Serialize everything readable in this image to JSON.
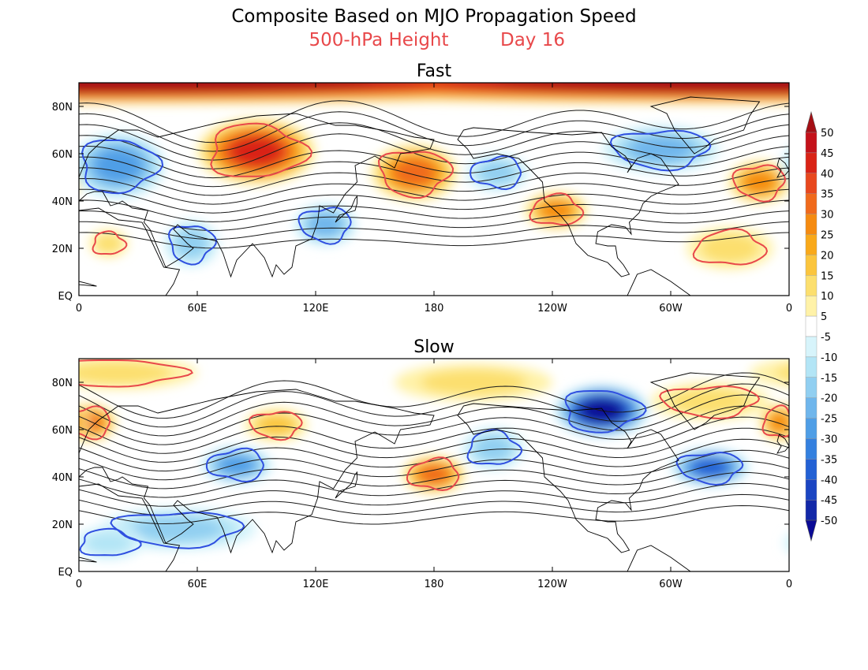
{
  "figure": {
    "title": "Composite Based on MJO Propagation Speed",
    "subtitle_field": "500-hPa Height",
    "subtitle_day": "Day 16",
    "subtitle_color": "#e8484a"
  },
  "axes": {
    "lat_labels": [
      "80N",
      "60N",
      "40N",
      "20N",
      "EQ"
    ],
    "lon_labels": [
      "0",
      "60E",
      "120E",
      "180",
      "120W",
      "60W",
      "0"
    ]
  },
  "panels": [
    {
      "title": "Fast",
      "positive_contour_color": "#e8484a",
      "negative_contour_color": "#2f4fe0",
      "anomaly_centers": [
        {
          "lon": 0,
          "lat": 90,
          "value": 50,
          "rlon": 360,
          "rlat": 9
        },
        {
          "lon": 90,
          "lat": 61,
          "value": 40,
          "rlon": 30,
          "rlat": 14
        },
        {
          "lon": 170,
          "lat": 52,
          "value": 30,
          "rlon": 22,
          "rlat": 12
        },
        {
          "lon": 242,
          "lat": 36,
          "value": 25,
          "rlon": 16,
          "rlat": 8
        },
        {
          "lon": 345,
          "lat": 48,
          "value": 25,
          "rlon": 16,
          "rlat": 9
        },
        {
          "lon": 330,
          "lat": 20,
          "value": 12,
          "rlon": 22,
          "rlat": 9
        },
        {
          "lon": 15,
          "lat": 22,
          "value": 12,
          "rlon": 10,
          "rlat": 6
        },
        {
          "lon": 20,
          "lat": 55,
          "value": -25,
          "rlon": 24,
          "rlat": 14
        },
        {
          "lon": 295,
          "lat": 62,
          "value": -20,
          "rlon": 30,
          "rlat": 10
        },
        {
          "lon": 125,
          "lat": 30,
          "value": -20,
          "rlon": 16,
          "rlat": 9
        },
        {
          "lon": 57,
          "lat": 22,
          "value": -15,
          "rlon": 14,
          "rlat": 10
        },
        {
          "lon": 212,
          "lat": 52,
          "value": -15,
          "rlon": 16,
          "rlat": 8
        }
      ],
      "zones": [
        {
          "lon_range": [
            0,
            360
          ],
          "lat_range": [
            0,
            90
          ],
          "positive": 10,
          "negative": -10
        }
      ]
    },
    {
      "title": "Slow",
      "positive_contour_color": "#e8484a",
      "negative_contour_color": "#2f4fe0",
      "anomaly_centers": [
        {
          "lon": 265,
          "lat": 68,
          "value": -50,
          "rlon": 24,
          "rlat": 11
        },
        {
          "lon": 320,
          "lat": 44,
          "value": -35,
          "rlon": 20,
          "rlat": 8
        },
        {
          "lon": 80,
          "lat": 45,
          "value": -25,
          "rlon": 18,
          "rlat": 8
        },
        {
          "lon": 50,
          "lat": 18,
          "value": -15,
          "rlon": 40,
          "rlat": 9
        },
        {
          "lon": 210,
          "lat": 52,
          "value": -15,
          "rlon": 16,
          "rlat": 9
        },
        {
          "lon": 15,
          "lat": 12,
          "value": -12,
          "rlon": 18,
          "rlat": 7
        },
        {
          "lon": 5,
          "lat": 63,
          "value": 30,
          "rlon": 14,
          "rlat": 8
        },
        {
          "lon": 355,
          "lat": 63,
          "value": 25,
          "rlon": 10,
          "rlat": 8
        },
        {
          "lon": 180,
          "lat": 41,
          "value": 30,
          "rlon": 16,
          "rlat": 8
        },
        {
          "lon": 100,
          "lat": 62,
          "value": 15,
          "rlon": 16,
          "rlat": 7
        },
        {
          "lon": 20,
          "lat": 84,
          "value": 12,
          "rlon": 40,
          "rlat": 7
        },
        {
          "lon": 200,
          "lat": 80,
          "value": 10,
          "rlon": 40,
          "rlat": 8
        },
        {
          "lon": 320,
          "lat": 72,
          "value": 12,
          "rlon": 30,
          "rlat": 8
        }
      ]
    }
  ],
  "colorbar": {
    "levels": [
      "50",
      "45",
      "40",
      "35",
      "30",
      "25",
      "20",
      "15",
      "10",
      "5",
      "-5",
      "-10",
      "-15",
      "-20",
      "-25",
      "-30",
      "-35",
      "-40",
      "-45",
      "-50"
    ],
    "colors": [
      "#a50f15",
      "#c4121a",
      "#d92316",
      "#e8481e",
      "#f06a1c",
      "#f58b11",
      "#f9a91a",
      "#fbc53d",
      "#fcdf6e",
      "#fff2a8",
      "#ffffff",
      "#d7f4fb",
      "#b3e5f6",
      "#91cff1",
      "#6fb6ec",
      "#4f9ee6",
      "#3480df",
      "#2361d4",
      "#1b45c2",
      "#1328a8",
      "#0a0a96"
    ]
  }
}
